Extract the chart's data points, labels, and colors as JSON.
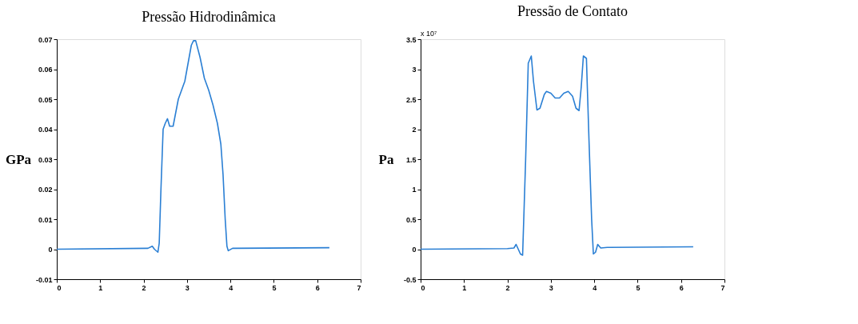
{
  "chart_data": [
    {
      "type": "line",
      "title": "Pressão Hidrodinâmica",
      "ylabel": "GPa",
      "xlim": [
        0,
        7
      ],
      "xticks": [
        0,
        1,
        2,
        3,
        4,
        5,
        6,
        7
      ],
      "ylim": [
        -0.01,
        0.07
      ],
      "yticks": [
        -0.01,
        0,
        0.01,
        0.02,
        0.03,
        0.04,
        0.05,
        0.06,
        0.07
      ],
      "grid": false,
      "series": [
        {
          "color": "#2a7fd4",
          "x": [
            0,
            2.1,
            2.2,
            2.25,
            2.33,
            2.36,
            2.4,
            2.45,
            2.5,
            2.55,
            2.6,
            2.68,
            2.8,
            2.95,
            3.0,
            3.1,
            3.15,
            3.2,
            3.3,
            3.4,
            3.5,
            3.6,
            3.7,
            3.78,
            3.83,
            3.88,
            3.92,
            3.95,
            4.05,
            4.1,
            6.28
          ],
          "values": [
            0,
            0.0003,
            0.001,
            0.0,
            -0.001,
            0.002,
            0.02,
            0.04,
            0.042,
            0.0435,
            0.041,
            0.041,
            0.05,
            0.056,
            0.06,
            0.068,
            0.0695,
            0.0695,
            0.064,
            0.057,
            0.053,
            0.048,
            0.042,
            0.035,
            0.025,
            0.01,
            0.001,
            -0.0005,
            0.0003,
            0.0003,
            0.0005
          ]
        }
      ]
    },
    {
      "type": "line",
      "title": "Pressão de Contato",
      "ylabel": "Pa",
      "annotations": [
        "x 10⁷"
      ],
      "xlim": [
        0,
        7
      ],
      "xticks": [
        0,
        1,
        2,
        3,
        4,
        5,
        6,
        7
      ],
      "ylim": [
        -0.5,
        3.5
      ],
      "yticks": [
        -0.5,
        0,
        0.5,
        1,
        1.5,
        2,
        2.5,
        3,
        3.5
      ],
      "grid": false,
      "series": [
        {
          "color": "#2a7fd4",
          "x": [
            0,
            2.0,
            2.15,
            2.2,
            2.25,
            2.3,
            2.35,
            2.42,
            2.48,
            2.55,
            2.6,
            2.68,
            2.75,
            2.85,
            2.9,
            3.0,
            3.1,
            3.2,
            3.3,
            3.4,
            3.5,
            3.58,
            3.65,
            3.7,
            3.75,
            3.82,
            3.88,
            3.94,
            3.98,
            4.03,
            4.08,
            4.15,
            4.3,
            6.28
          ],
          "values": [
            0,
            0.01,
            0.02,
            0.08,
            0.0,
            -0.08,
            -0.1,
            1.5,
            3.1,
            3.22,
            2.8,
            2.32,
            2.35,
            2.58,
            2.63,
            2.6,
            2.52,
            2.52,
            2.6,
            2.63,
            2.55,
            2.35,
            2.31,
            2.7,
            3.22,
            3.18,
            1.8,
            0.5,
            -0.08,
            -0.05,
            0.08,
            0.02,
            0.03,
            0.04
          ]
        }
      ]
    }
  ]
}
